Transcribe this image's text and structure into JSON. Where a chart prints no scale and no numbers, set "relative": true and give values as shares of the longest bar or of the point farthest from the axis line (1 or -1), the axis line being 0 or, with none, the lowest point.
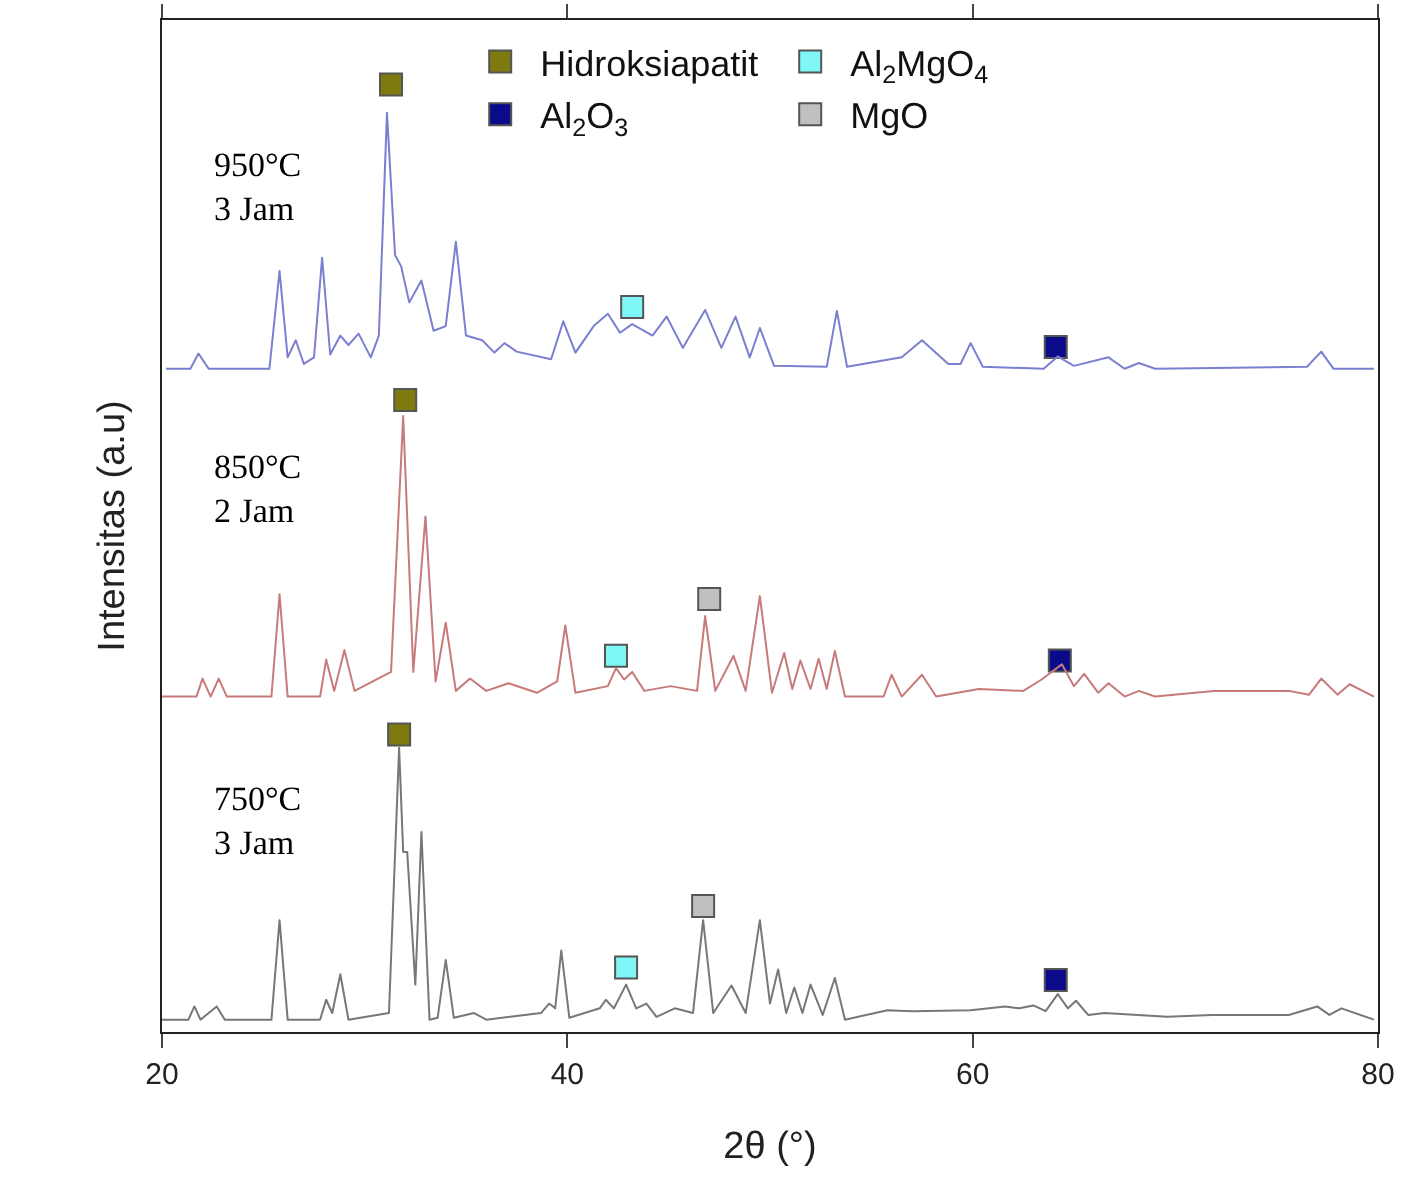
{
  "chart_data": {
    "type": "line",
    "relative": true,
    "xlabel": "2θ (°)",
    "ylabel": "Intensitas (a.u)",
    "xlim": [
      20,
      80
    ],
    "xticks": [
      20,
      40,
      60,
      80
    ],
    "legend": "top",
    "grid": false,
    "line_style": "solid",
    "series": [
      {
        "name": "950°C\n3 Jam",
        "color": "#7b7fd0",
        "x": [
          20.2,
          21.4,
          21.8,
          22.3,
          25.3,
          25.8,
          26.2,
          26.6,
          27.0,
          27.5,
          27.9,
          28.3,
          28.8,
          29.2,
          29.7,
          30.3,
          30.7,
          31.1,
          31.5,
          31.8,
          32.2,
          32.8,
          33.4,
          34.0,
          34.5,
          35.0,
          35.8,
          36.4,
          36.9,
          37.5,
          39.2,
          39.8,
          40.4,
          41.3,
          42.0,
          42.6,
          43.2,
          44.2,
          44.9,
          45.7,
          46.8,
          47.6,
          48.3,
          49.0,
          49.5,
          50.2,
          52.8,
          53.3,
          53.8,
          56.5,
          57.5,
          58.8,
          59.4,
          59.9,
          60.5,
          63.5,
          64.2,
          65.0,
          66.7,
          67.5,
          68.2,
          69.0,
          76.5,
          77.2,
          77.8,
          79.8
        ],
        "values": [
          0.7,
          0.7,
          0.716,
          0.7,
          0.7,
          0.803,
          0.712,
          0.73,
          0.705,
          0.712,
          0.817,
          0.715,
          0.735,
          0.725,
          0.737,
          0.712,
          0.735,
          0.97,
          0.82,
          0.808,
          0.77,
          0.793,
          0.74,
          0.745,
          0.834,
          0.735,
          0.73,
          0.717,
          0.727,
          0.718,
          0.71,
          0.75,
          0.717,
          0.745,
          0.758,
          0.738,
          0.747,
          0.735,
          0.755,
          0.722,
          0.762,
          0.722,
          0.755,
          0.712,
          0.743,
          0.703,
          0.702,
          0.761,
          0.702,
          0.712,
          0.73,
          0.705,
          0.705,
          0.727,
          0.702,
          0.7,
          0.713,
          0.703,
          0.712,
          0.7,
          0.706,
          0.7,
          0.702,
          0.718,
          0.7,
          0.7
        ]
      },
      {
        "name": "850°C\n2 Jam",
        "color": "#c87a7a",
        "x": [
          20,
          21.7,
          22.0,
          22.4,
          22.8,
          23.2,
          25.4,
          25.8,
          26.2,
          27.8,
          28.1,
          28.5,
          29.0,
          29.5,
          31.3,
          31.9,
          32.4,
          33.0,
          33.5,
          34.0,
          34.5,
          35.2,
          36.0,
          37.1,
          38.5,
          39.5,
          39.9,
          40.4,
          42.0,
          42.4,
          42.8,
          43.2,
          43.8,
          45.1,
          46.4,
          46.8,
          47.3,
          48.2,
          48.8,
          49.5,
          50.1,
          50.7,
          51.1,
          51.5,
          52.0,
          52.4,
          52.8,
          53.2,
          53.7,
          55.6,
          56.0,
          56.5,
          57.5,
          58.2,
          60.3,
          62.5,
          63.4,
          64.4,
          65.0,
          65.5,
          66.2,
          66.7,
          67.5,
          68.2,
          69.0,
          71.9,
          74.3,
          75.6,
          76.6,
          77.2,
          78.0,
          78.6,
          79.8
        ],
        "values": [
          0.354,
          0.354,
          0.373,
          0.354,
          0.373,
          0.354,
          0.354,
          0.462,
          0.354,
          0.354,
          0.393,
          0.36,
          0.403,
          0.36,
          0.38,
          0.65,
          0.38,
          0.544,
          0.37,
          0.432,
          0.36,
          0.373,
          0.36,
          0.368,
          0.358,
          0.37,
          0.429,
          0.358,
          0.365,
          0.384,
          0.372,
          0.38,
          0.36,
          0.365,
          0.36,
          0.439,
          0.36,
          0.397,
          0.36,
          0.46,
          0.358,
          0.4,
          0.362,
          0.392,
          0.362,
          0.394,
          0.362,
          0.402,
          0.354,
          0.354,
          0.377,
          0.354,
          0.377,
          0.354,
          0.362,
          0.36,
          0.372,
          0.388,
          0.365,
          0.378,
          0.358,
          0.368,
          0.354,
          0.36,
          0.354,
          0.36,
          0.36,
          0.36,
          0.356,
          0.373,
          0.356,
          0.367,
          0.354
        ]
      },
      {
        "name": "750°C\n3 Jam",
        "color": "#777777",
        "x": [
          20,
          21.3,
          21.6,
          21.9,
          22.7,
          23.1,
          25.4,
          25.8,
          26.2,
          27.8,
          28.1,
          28.4,
          28.8,
          29.2,
          31.2,
          31.7,
          31.9,
          32.1,
          32.5,
          32.8,
          33.2,
          33.6,
          34.0,
          34.4,
          35.4,
          36,
          38.7,
          39.1,
          39.4,
          39.7,
          40.1,
          41.6,
          41.9,
          42.3,
          42.9,
          43.4,
          43.9,
          44.4,
          45.3,
          46.2,
          46.7,
          47.2,
          48.1,
          48.8,
          49.5,
          50.0,
          50.4,
          50.8,
          51.2,
          51.6,
          52.0,
          52.6,
          53.2,
          53.7,
          55.8,
          57.0,
          59.9,
          61.6,
          62.3,
          63.0,
          63.6,
          64.2,
          64.7,
          65.1,
          65.7,
          66.5,
          69.6,
          71.8,
          73.9,
          75.6,
          77.0,
          77.6,
          78.2,
          79.8
        ],
        "values": [
          0.013,
          0.013,
          0.027,
          0.013,
          0.027,
          0.013,
          0.013,
          0.118,
          0.013,
          0.013,
          0.034,
          0.02,
          0.061,
          0.013,
          0.02,
          0.3,
          0.19,
          0.19,
          0.05,
          0.211,
          0.013,
          0.015,
          0.076,
          0.015,
          0.02,
          0.013,
          0.02,
          0.03,
          0.025,
          0.086,
          0.015,
          0.025,
          0.034,
          0.025,
          0.05,
          0.025,
          0.03,
          0.016,
          0.025,
          0.02,
          0.118,
          0.02,
          0.049,
          0.02,
          0.118,
          0.03,
          0.066,
          0.02,
          0.047,
          0.02,
          0.05,
          0.018,
          0.057,
          0.013,
          0.023,
          0.022,
          0.023,
          0.027,
          0.025,
          0.028,
          0.022,
          0.04,
          0.025,
          0.033,
          0.018,
          0.02,
          0.016,
          0.018,
          0.018,
          0.018,
          0.027,
          0.018,
          0.025,
          0.013
        ]
      },
      {
        "name": "Hidroksiapatit",
        "type": "scatter",
        "marker": "square",
        "color": "#7f7a10",
        "x": [
          31.3,
          32.0,
          31.7
        ],
        "values": [
          1.0,
          0.667,
          0.314
        ]
      },
      {
        "name": "Al$_{2}$MgO$_{4}$",
        "type": "scatter",
        "marker": "square",
        "color": "#7ff7f7",
        "x": [
          43.2,
          42.4,
          42.9
        ],
        "values": [
          0.765,
          0.397,
          0.068
        ]
      },
      {
        "name": "Al$_{2}$O$_{3}$",
        "type": "scatter",
        "marker": "square",
        "color": "#0a0a8a",
        "x": [
          64.1,
          64.3,
          64.1
        ],
        "values": [
          0.723,
          0.392,
          0.055
        ]
      },
      {
        "name": "MgO",
        "type": "scatter",
        "marker": "square",
        "color": "#c0c0c0",
        "x": [
          47.0,
          46.7
        ],
        "values": [
          0.457,
          0.133
        ]
      }
    ]
  }
}
